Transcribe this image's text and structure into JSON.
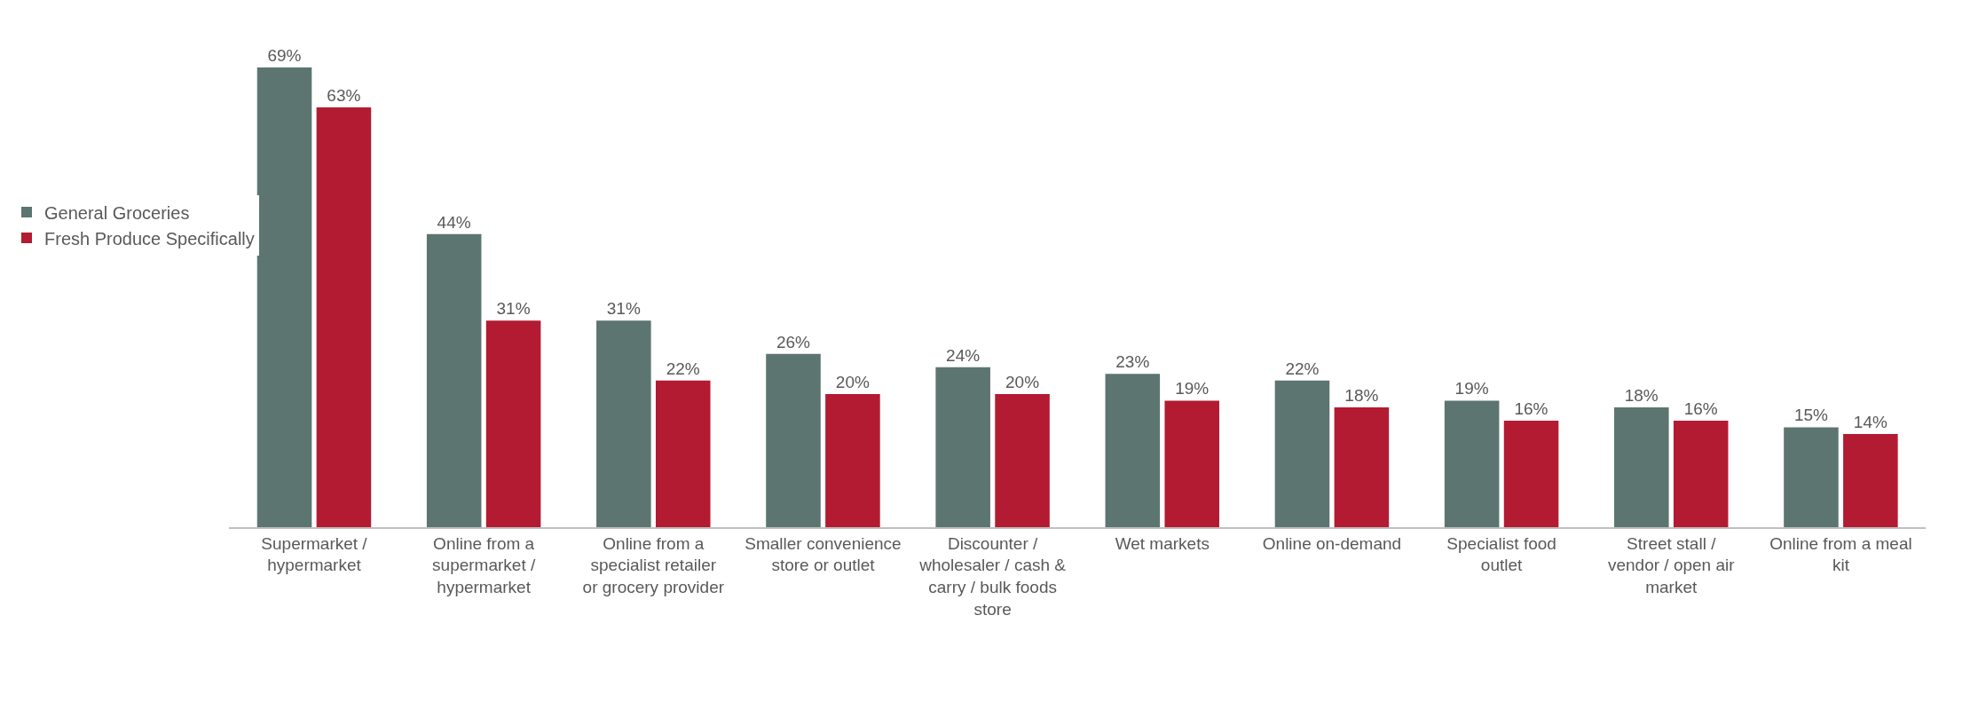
{
  "chart_data": {
    "type": "bar",
    "categories": [
      "Supermarket / hypermarket",
      "Online from a supermarket / hypermarket",
      "Online from a specialist retailer or grocery provider",
      "Smaller convenience store or outlet",
      "Discounter / wholesaler / cash & carry / bulk foods store",
      "Wet markets",
      "Online on-demand",
      "Specialist food outlet",
      "Street stall / vendor / open air market",
      "Online from a meal kit"
    ],
    "series": [
      {
        "name": "General Groceries",
        "color": "#5c7570",
        "values": [
          69,
          44,
          31,
          26,
          24,
          23,
          22,
          19,
          18,
          15
        ],
        "value_labels": [
          "69%",
          "44%",
          "31%",
          "26%",
          "24%",
          "23%",
          "22%",
          "19%",
          "18%",
          "15%"
        ]
      },
      {
        "name": "Fresh Produce Specifically",
        "color": "#b31b32",
        "values": [
          63,
          31,
          22,
          20,
          20,
          19,
          18,
          16,
          16,
          14
        ],
        "value_labels": [
          "63%",
          "31%",
          "22%",
          "20%",
          "20%",
          "19%",
          "18%",
          "16%",
          "16%",
          "14%"
        ]
      }
    ],
    "legend": "left"
  }
}
